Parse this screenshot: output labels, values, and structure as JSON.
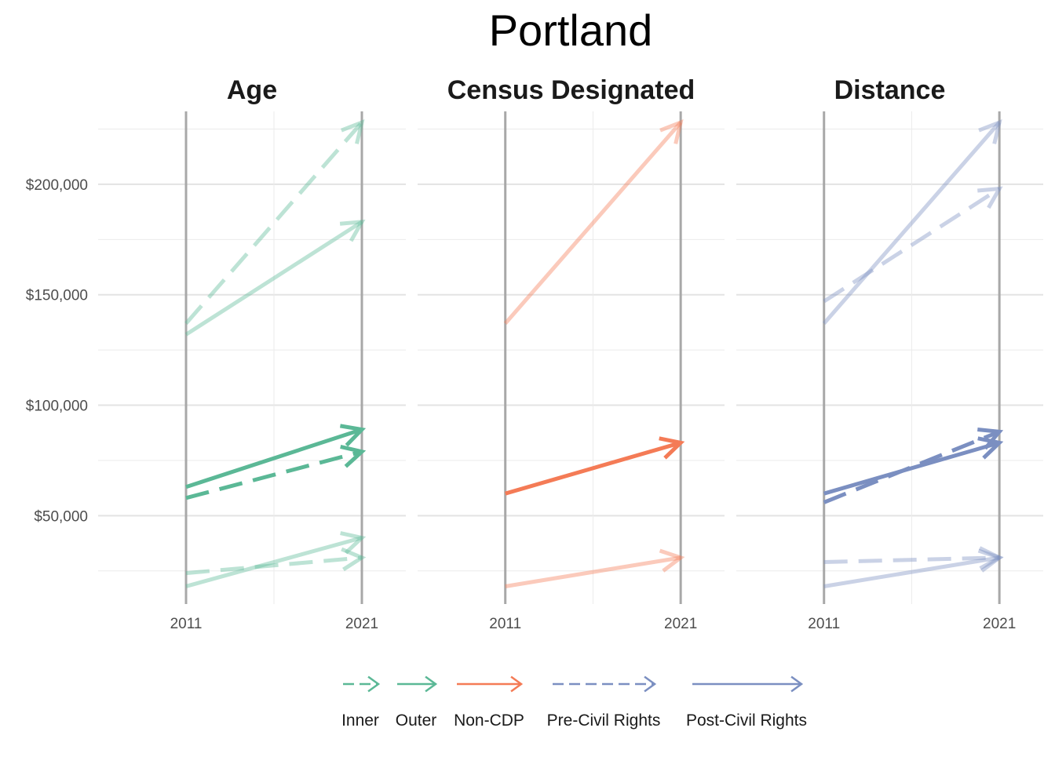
{
  "title": "Portland",
  "chart_data": {
    "type": "line",
    "title": "Portland",
    "grid": true,
    "legend_position": "bottom",
    "x_ticks": [
      "2011",
      "2021"
    ],
    "y_ticks": [
      "$50,000",
      "$100,000",
      "$150,000",
      "$200,000"
    ],
    "y_tick_values": [
      50000,
      100000,
      150000,
      200000
    ],
    "ylim": [
      10000,
      233000
    ],
    "xlim": [
      2006,
      2023.5
    ],
    "legend": [
      {
        "label": "Inner",
        "color": "#5bb896",
        "dashed": true
      },
      {
        "label": "Outer",
        "color": "#5bb896",
        "dashed": false
      },
      {
        "label": "Non-CDP",
        "color": "#f47b56",
        "dashed": false
      },
      {
        "label": "Pre-Civil Rights",
        "color": "#7b8fc1",
        "dashed": true
      },
      {
        "label": "Post-Civil Rights",
        "color": "#7b8fc1",
        "dashed": false
      }
    ],
    "panels": [
      {
        "label": "Age",
        "color": "#5bb896",
        "series": [
          {
            "dashed": true,
            "opacity": 0.4,
            "x": [
              2011,
              2021
            ],
            "values": [
              137000,
              228000
            ]
          },
          {
            "dashed": false,
            "opacity": 0.4,
            "x": [
              2011,
              2021
            ],
            "values": [
              132000,
              183000
            ]
          },
          {
            "dashed": false,
            "opacity": 1.0,
            "x": [
              2011,
              2021
            ],
            "values": [
              63000,
              89000
            ]
          },
          {
            "dashed": true,
            "opacity": 1.0,
            "x": [
              2011,
              2021
            ],
            "values": [
              58000,
              79000
            ]
          },
          {
            "dashed": false,
            "opacity": 0.4,
            "x": [
              2011,
              2021
            ],
            "values": [
              18000,
              40000
            ]
          },
          {
            "dashed": true,
            "opacity": 0.4,
            "x": [
              2011,
              2021
            ],
            "values": [
              24000,
              31000
            ]
          }
        ]
      },
      {
        "label": "Census Designated",
        "color": "#f47b56",
        "series": [
          {
            "dashed": false,
            "opacity": 0.4,
            "x": [
              2011,
              2021
            ],
            "values": [
              137000,
              228000
            ]
          },
          {
            "dashed": false,
            "opacity": 1.0,
            "x": [
              2011,
              2021
            ],
            "values": [
              60000,
              83000
            ]
          },
          {
            "dashed": false,
            "opacity": 0.4,
            "x": [
              2011,
              2021
            ],
            "values": [
              18000,
              31000
            ]
          }
        ]
      },
      {
        "label": "Distance",
        "color": "#7b8fc1",
        "series": [
          {
            "dashed": false,
            "opacity": 0.4,
            "x": [
              2011,
              2021
            ],
            "values": [
              137000,
              228000
            ]
          },
          {
            "dashed": true,
            "opacity": 0.4,
            "x": [
              2011,
              2021
            ],
            "values": [
              147000,
              198000
            ]
          },
          {
            "dashed": true,
            "opacity": 1.0,
            "x": [
              2011,
              2021
            ],
            "values": [
              56000,
              88000
            ]
          },
          {
            "dashed": false,
            "opacity": 1.0,
            "x": [
              2011,
              2021
            ],
            "values": [
              60000,
              83000
            ]
          },
          {
            "dashed": true,
            "opacity": 0.4,
            "x": [
              2011,
              2021
            ],
            "values": [
              29000,
              31000
            ]
          },
          {
            "dashed": false,
            "opacity": 0.4,
            "x": [
              2011,
              2021
            ],
            "values": [
              18000,
              31000
            ]
          }
        ]
      }
    ]
  }
}
